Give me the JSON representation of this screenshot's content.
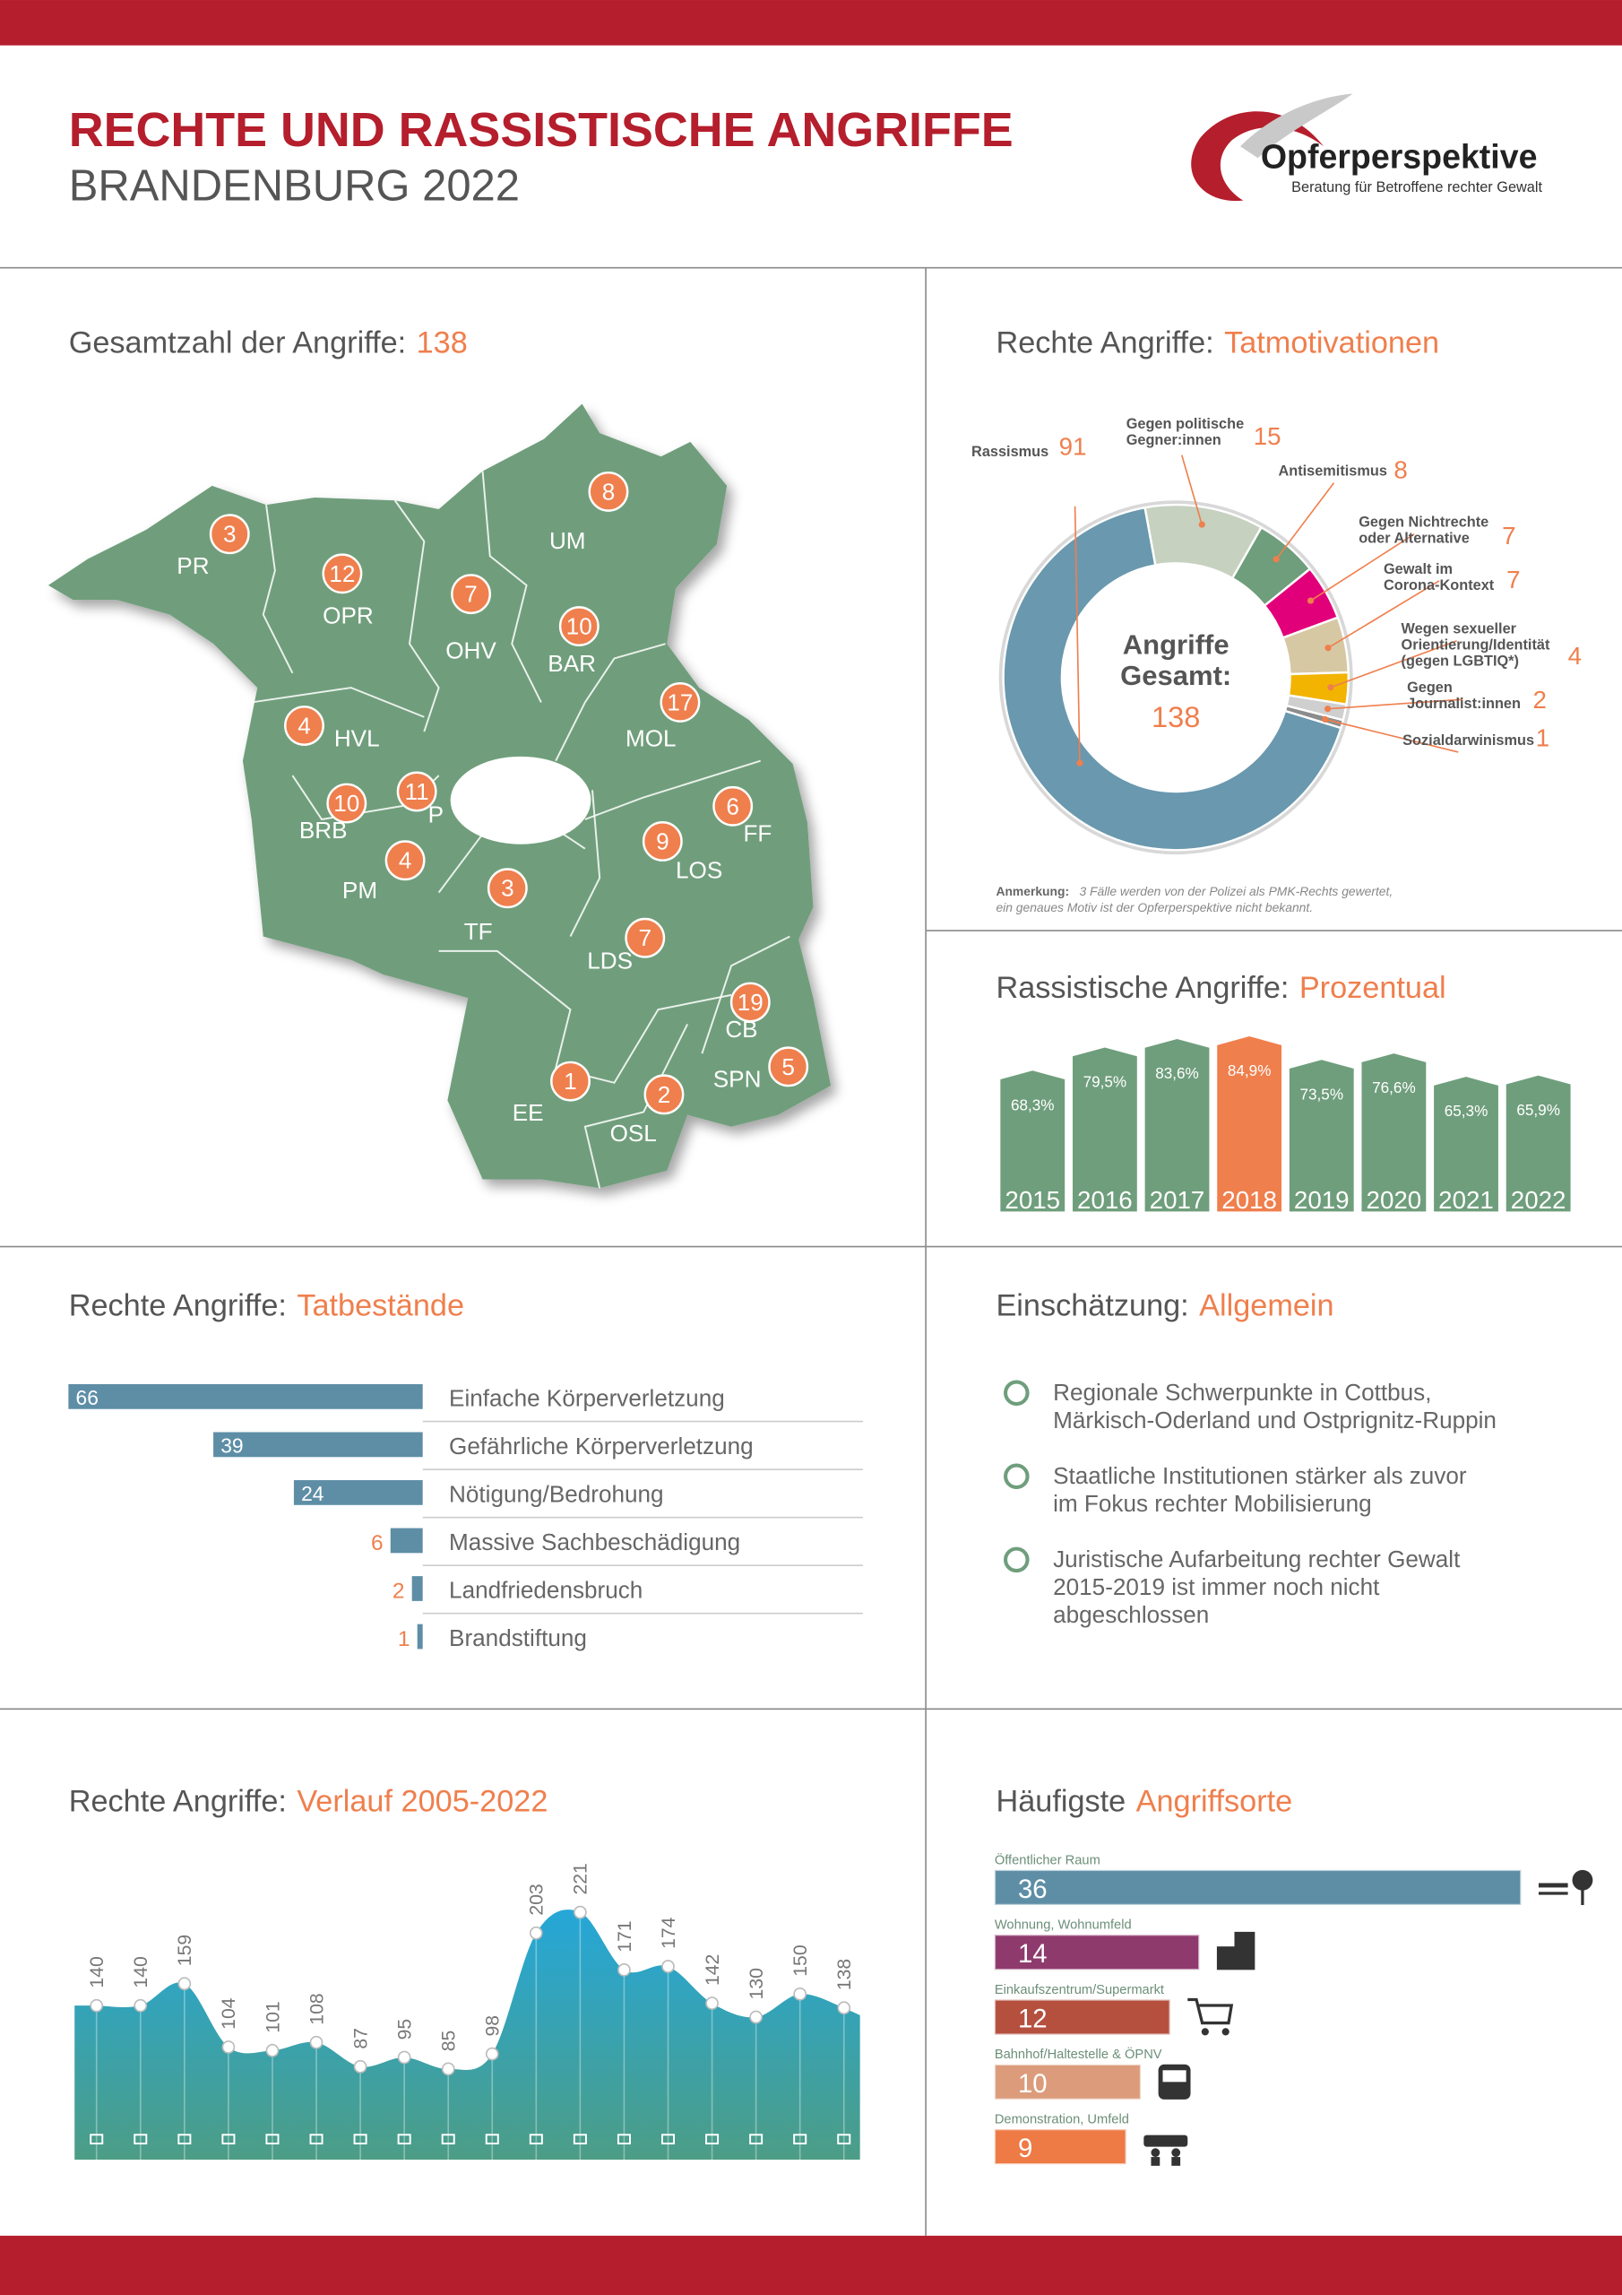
{
  "header": {
    "title": "RECHTE UND RASSISTISCHE ANGRIFFE",
    "subtitle": "BRANDENBURG 2022",
    "logo_name": "Opferperspektive",
    "logo_tagline": "Beratung für Betroffene rechter Gewalt"
  },
  "chart_data": [
    {
      "type": "map",
      "title_lead": "Gesamtzahl der Angriffe:",
      "title_accent": 138,
      "categories": [
        "PR",
        "OPR",
        "OHV",
        "UM",
        "BAR",
        "MOL",
        "HVL",
        "BRB",
        "P",
        "PM",
        "FF",
        "LOS",
        "TF",
        "LDS",
        "CB",
        "SPN",
        "EE",
        "OSL"
      ],
      "values": [
        3,
        12,
        7,
        8,
        10,
        17,
        4,
        10,
        11,
        4,
        6,
        9,
        3,
        7,
        19,
        5,
        1,
        2
      ],
      "color": "#6f9e7c",
      "marker_color": "#ef7f4d"
    },
    {
      "type": "donut",
      "title_lead": "Rechte Angriffe:",
      "title_accent": "Tatmotivationen",
      "center_label": "Angriffe\nGesamt:",
      "center_value": 138,
      "categories": [
        "Rassismus",
        "Gegen politische\nGegner:innen",
        "Antisemitismus",
        "Gegen Nichtrechte\noder Alternative",
        "Gewalt im\nCorona-Kontext",
        "Wegen sexueller\nOrientierung/Identität\n(gegen LGBTIQ*)",
        "Gegen\nJournalist:innen",
        "Sozialdarwinismus"
      ],
      "values": [
        91,
        15,
        8,
        7,
        7,
        4,
        2,
        1
      ],
      "colors": [
        "#6a98ae",
        "#c6d1c0",
        "#6f9e7c",
        "#e2007a",
        "#d7c8a4",
        "#f2b400",
        "#cfcfcf",
        "#8c8c8c"
      ],
      "note_lead": "Anmerkung:",
      "note": "3 Fälle werden von der Polizei als PMK-Rechts gewertet,\nein genaues Motiv ist der Opferperspektive nicht bekannt."
    },
    {
      "type": "column",
      "title_lead": "Rassistische Angriffe:",
      "title_accent": "Prozentual",
      "categories": [
        "2015",
        "2016",
        "2017",
        "2018",
        "2019",
        "2020",
        "2021",
        "2022"
      ],
      "values": [
        68.3,
        79.5,
        83.6,
        84.9,
        73.5,
        76.6,
        65.3,
        65.9
      ],
      "value_labels": [
        "68,3%",
        "79,5%",
        "83,6%",
        "84,9%",
        "73,5%",
        "76,6%",
        "65,3%",
        "65,9%"
      ],
      "colors": [
        "#6f9e7c",
        "#6f9e7c",
        "#6f9e7c",
        "#ef7f4d",
        "#6f9e7c",
        "#6f9e7c",
        "#6f9e7c",
        "#6f9e7c"
      ]
    },
    {
      "type": "bar",
      "bar_direction": "left",
      "title_lead": "Rechte Angriffe:",
      "title_accent": "Tatbestände",
      "categories": [
        "Einfache Körperverletzung",
        "Gefährliche Körperverletzung",
        "Nötigung/Bedrohung",
        "Massive Sachbeschädigung",
        "Landfriedensbruch",
        "Brandstiftung"
      ],
      "values": [
        66,
        39,
        24,
        6,
        2,
        1
      ],
      "color": "#5e8ea6"
    },
    {
      "type": "area",
      "title_lead": "Rechte Angriffe:",
      "title_accent": "Verlauf 2005-2022",
      "values": [
        140,
        140,
        159,
        104,
        101,
        108,
        87,
        95,
        85,
        98,
        203,
        221,
        171,
        174,
        142,
        130,
        150,
        138
      ],
      "color": "#2aa6d3"
    },
    {
      "type": "bar",
      "bar_direction": "right",
      "title_lead": "Häufigste",
      "title_accent": "Angriffsorte",
      "categories": [
        "Öffentlicher Raum",
        "Wohnung, Wohnumfeld",
        "Einkaufszentrum/Supermarkt",
        "Bahnhof/Haltestelle & ÖPNV",
        "Demonstration, Umfeld"
      ],
      "values": [
        36,
        14,
        12,
        10,
        9
      ],
      "colors": [
        "#5e8ea6",
        "#8e3a6d",
        "#b5503f",
        "#dc9c7c",
        "#ee7a45"
      ]
    }
  ],
  "assessment": {
    "title_lead": "Einschätzung:",
    "title_accent": "Allgemein",
    "items": [
      "Regionale Schwerpunkte in Cottbus,\nMärkisch-Oderland und Ostprignitz-Ruppin",
      "Staatliche Institutionen stärker als zuvor\nim Fokus rechter Mobilisierung",
      "Juristische Aufarbeitung rechter Gewalt\n2015-2019  ist immer noch nicht\nabgeschlossen"
    ]
  }
}
